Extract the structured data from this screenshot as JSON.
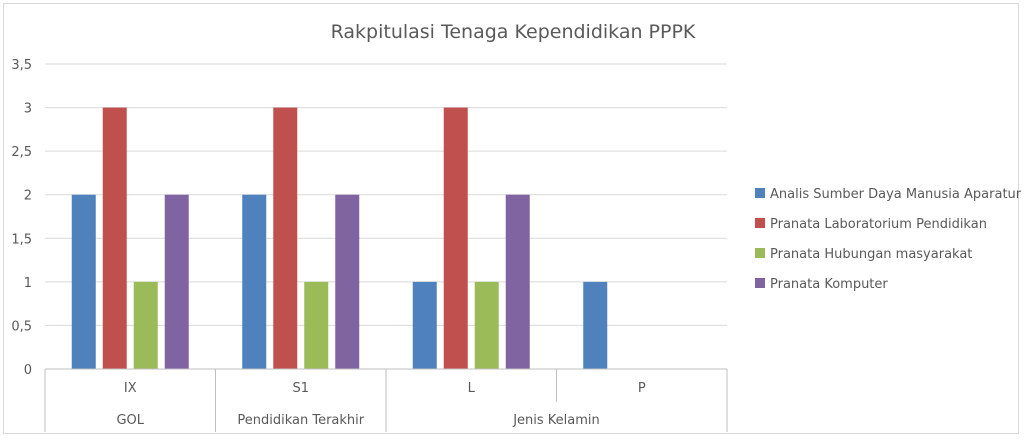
{
  "chart_data": {
    "type": "bar",
    "title": "Rakpitulasi Tenaga Kependidikan PPPK",
    "categories": [
      "IX",
      "S1",
      "L",
      "P"
    ],
    "category_groups": [
      {
        "label": "GOL",
        "categories": [
          "IX"
        ]
      },
      {
        "label": "Pendidikan Terakhir",
        "categories": [
          "S1"
        ]
      },
      {
        "label": "Jenis Kelamin",
        "categories": [
          "L",
          "P"
        ]
      }
    ],
    "series": [
      {
        "name": "Analis Sumber Daya Manusia Aparatur",
        "color": "#4f81bd",
        "values": [
          2,
          2,
          1,
          1
        ]
      },
      {
        "name": "Pranata Laboratorium Pendidikan",
        "color": "#c0504d",
        "values": [
          3,
          3,
          3,
          null
        ]
      },
      {
        "name": "Pranata Hubungan masyarakat",
        "color": "#9bbb59",
        "values": [
          1,
          1,
          1,
          null
        ]
      },
      {
        "name": "Pranata Komputer",
        "color": "#8064a2",
        "values": [
          2,
          2,
          2,
          null
        ]
      }
    ],
    "y_ticks": [
      "0",
      "0,5",
      "1",
      "1,5",
      "2",
      "2,5",
      "3",
      "3,5"
    ],
    "ylim": [
      0,
      3.5
    ],
    "grid": true,
    "legend_position": "right"
  }
}
